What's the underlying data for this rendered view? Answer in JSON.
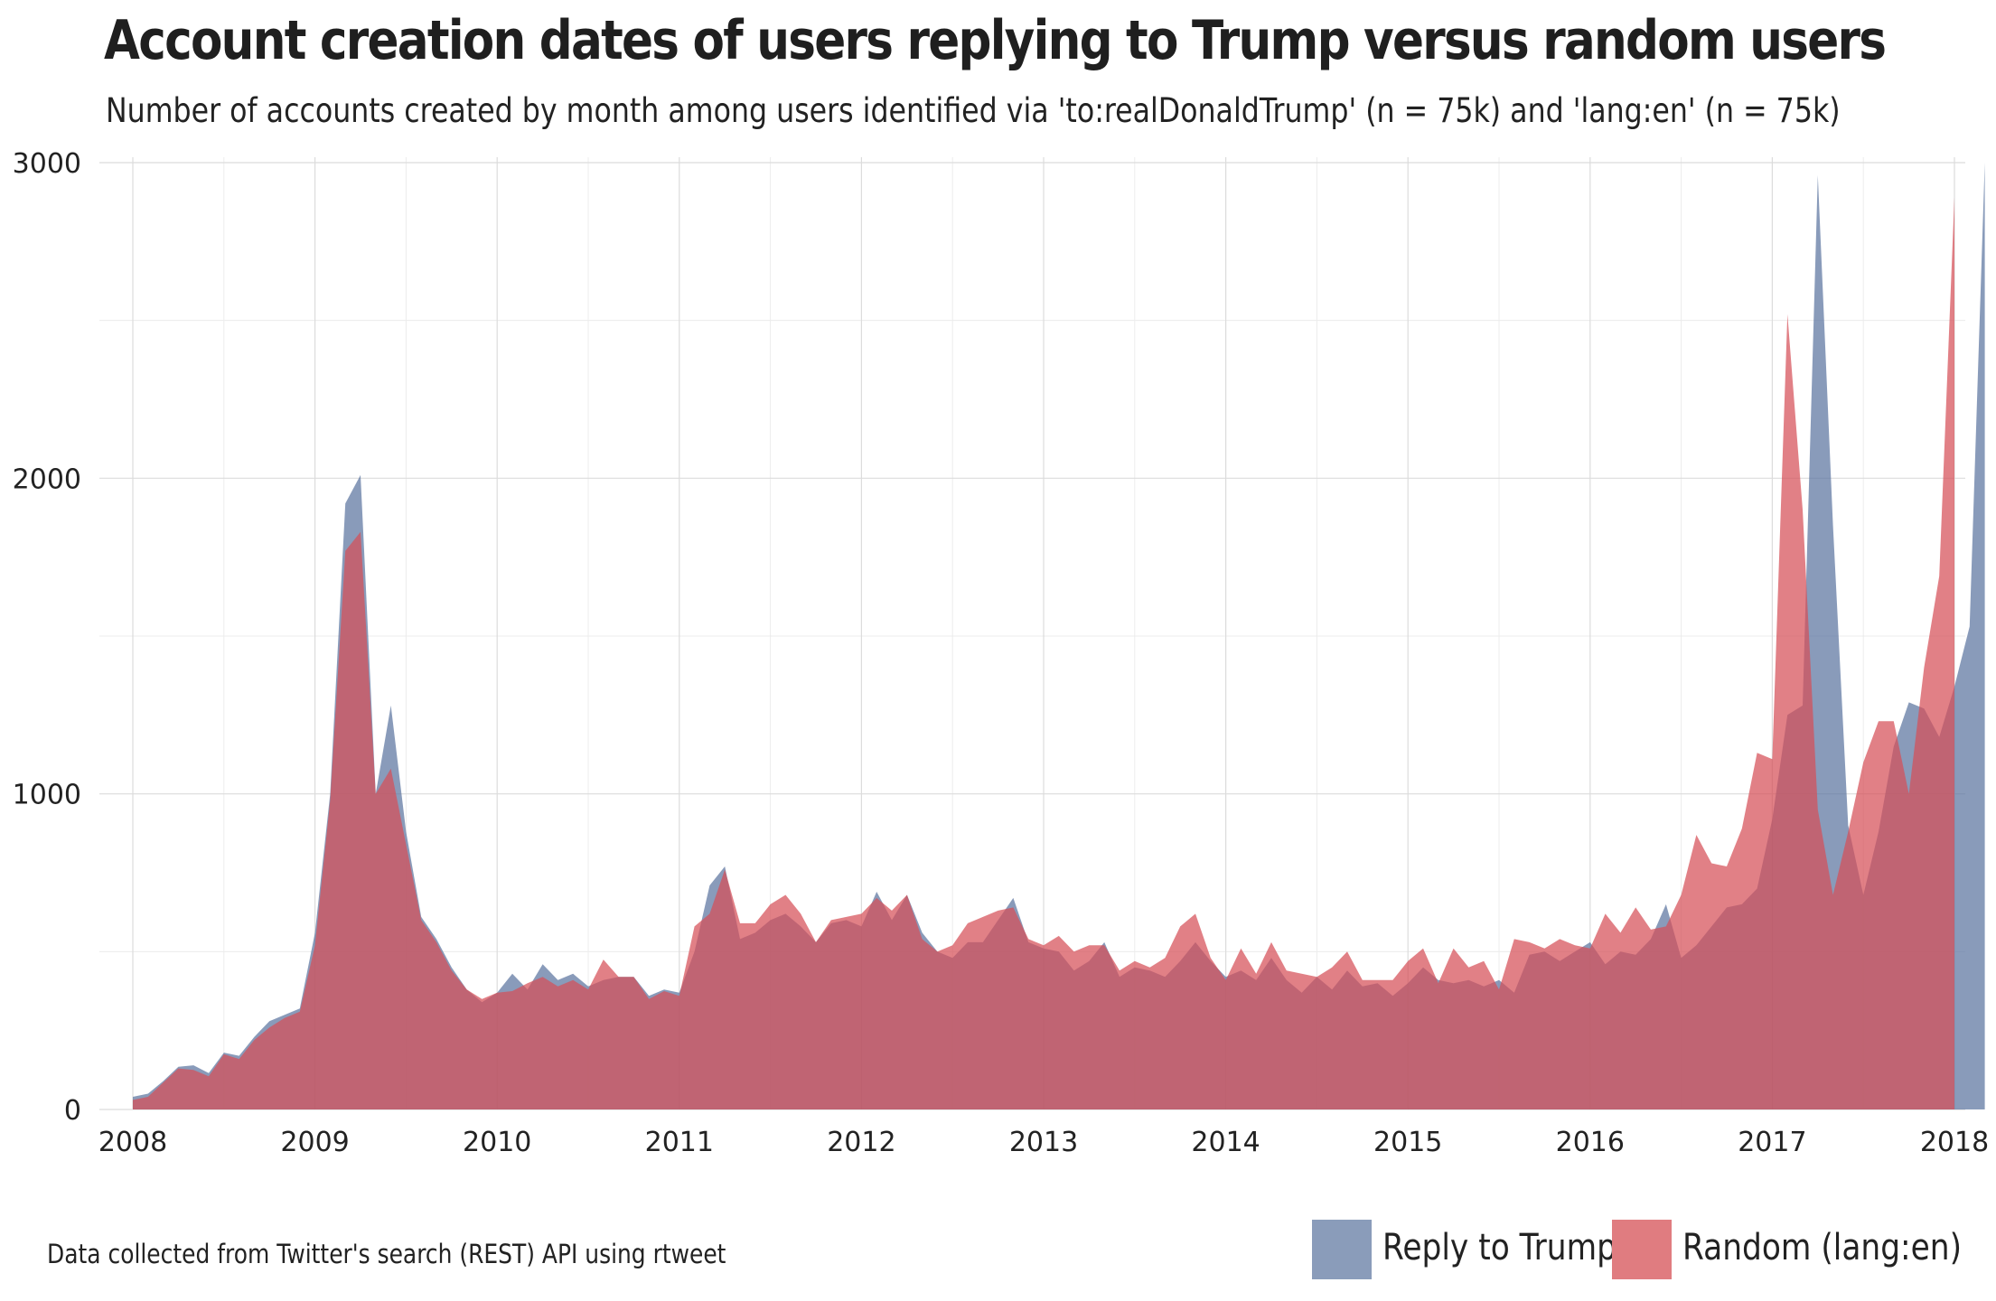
{
  "title": "Account creation dates of users replying to Trump versus random users",
  "subtitle": "Number of accounts created by month among users identified via 'to:realDonaldTrump' (n = 75k) and 'lang:en' (n = 75k)",
  "caption": "Data collected from Twitter's search (REST) API using rtweet",
  "colors": {
    "reply_to_trump": "#5b749f",
    "random": "#d64f58",
    "overlap": "#a34f5e",
    "grid": "#dcdcdc"
  },
  "legend": {
    "position": "bottom-right",
    "items": [
      {
        "label": "Reply to Trump",
        "color": "#8a9cba"
      },
      {
        "label": "Random (lang:en)",
        "color": "#e07c80"
      }
    ]
  },
  "chart_data": {
    "type": "area",
    "title": "Account creation dates of users replying to Trump versus random users",
    "subtitle": "Number of accounts created by month among users identified via 'to:realDonaldTrump' (n = 75k) and 'lang:en' (n = 75k)",
    "xlabel": "",
    "ylabel": "",
    "x_unit": "month",
    "x_start": "2008-01",
    "x_ticks": [
      "2008",
      "2009",
      "2010",
      "2011",
      "2012",
      "2013",
      "2014",
      "2015",
      "2016",
      "2017",
      "2018"
    ],
    "y_ticks": [
      0,
      1000,
      2000,
      3000
    ],
    "xlim": [
      "2008-01",
      "2018-01"
    ],
    "ylim": [
      0,
      3000
    ],
    "grid": true,
    "series": [
      {
        "name": "Reply to Trump",
        "values": [
          40,
          50,
          90,
          135,
          140,
          115,
          180,
          170,
          230,
          280,
          300,
          320,
          560,
          1000,
          1920,
          2010,
          1000,
          1280,
          880,
          610,
          540,
          450,
          380,
          340,
          370,
          430,
          380,
          460,
          410,
          430,
          390,
          410,
          420,
          420,
          360,
          380,
          370,
          500,
          710,
          770,
          540,
          560,
          600,
          620,
          580,
          530,
          590,
          600,
          580,
          690,
          600,
          680,
          560,
          500,
          480,
          530,
          530,
          600,
          670,
          530,
          510,
          500,
          440,
          470,
          530,
          420,
          450,
          440,
          420,
          470,
          530,
          470,
          420,
          440,
          410,
          480,
          410,
          370,
          420,
          380,
          440,
          390,
          400,
          360,
          400,
          450,
          410,
          400,
          410,
          390,
          410,
          370,
          490,
          500,
          470,
          500,
          530,
          460,
          500,
          490,
          540,
          650,
          480,
          520,
          580,
          640,
          650,
          700,
          920,
          1250,
          1280,
          2960,
          1850,
          900,
          680,
          880,
          1150,
          1290,
          1270,
          1180,
          1340,
          1530,
          3000
        ]
      },
      {
        "name": "Random (lang:en)",
        "values": [
          30,
          40,
          85,
          130,
          125,
          105,
          175,
          160,
          220,
          260,
          290,
          310,
          520,
          980,
          1770,
          1830,
          1000,
          1080,
          840,
          600,
          530,
          440,
          380,
          350,
          370,
          375,
          400,
          420,
          390,
          410,
          380,
          475,
          420,
          420,
          350,
          375,
          360,
          580,
          620,
          760,
          590,
          590,
          650,
          680,
          620,
          530,
          600,
          610,
          620,
          670,
          630,
          680,
          540,
          500,
          520,
          590,
          610,
          630,
          640,
          540,
          520,
          550,
          500,
          520,
          520,
          440,
          470,
          450,
          480,
          580,
          620,
          480,
          410,
          510,
          430,
          530,
          440,
          430,
          420,
          450,
          500,
          410,
          410,
          410,
          470,
          510,
          400,
          510,
          450,
          470,
          380,
          540,
          530,
          510,
          540,
          520,
          510,
          620,
          560,
          640,
          570,
          580,
          680,
          870,
          780,
          770,
          890,
          1130,
          1110,
          2520,
          1900,
          950,
          680,
          880,
          1100,
          1230,
          1230,
          1000,
          1400,
          1690,
          2890
        ]
      }
    ]
  }
}
